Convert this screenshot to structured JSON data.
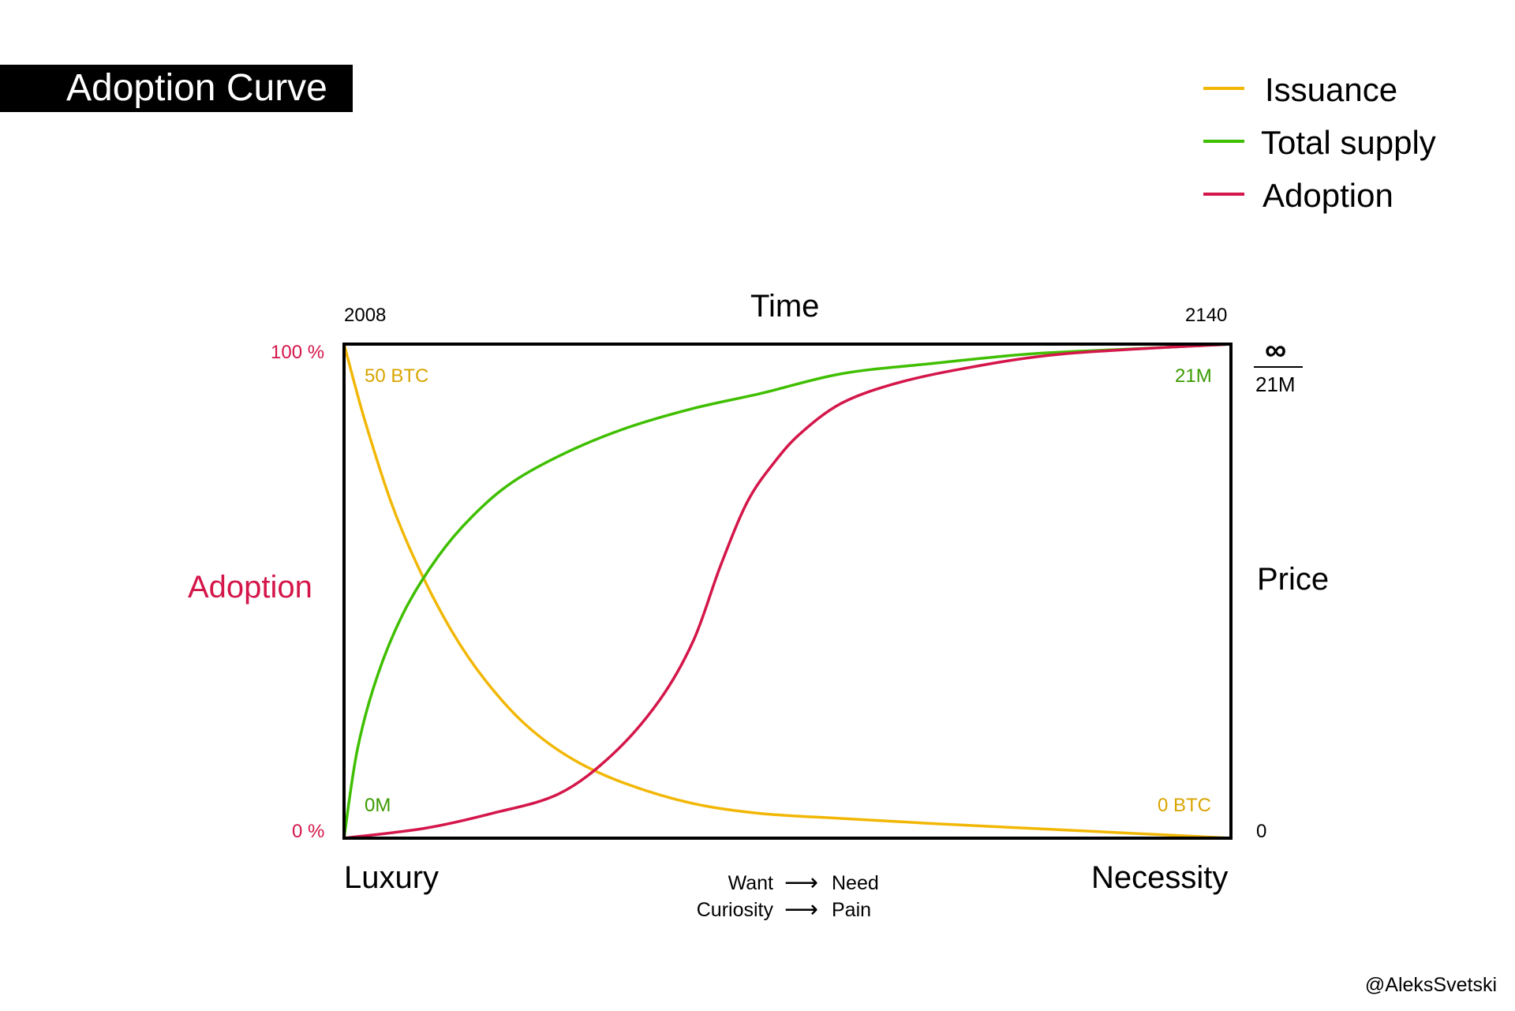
{
  "header": {
    "title": "Adoption Curve"
  },
  "legend": [
    {
      "name": "Issuance",
      "color": "#f2b705"
    },
    {
      "name": "Total supply",
      "color": "#3fbf00"
    },
    {
      "name": "Adoption",
      "color": "#d4164a"
    }
  ],
  "axes": {
    "top_title": "Time",
    "x_start": "2008",
    "x_end": "2140",
    "left_title": "Adoption",
    "left_top": "100 %",
    "left_bottom": "0 %",
    "right_title": "Price",
    "right_top_symbol": "∞",
    "right_top_value": "21M",
    "right_bottom": "0",
    "bottom_left": "Luxury",
    "bottom_right": "Necessity"
  },
  "annotations": {
    "issuance_start": "50 BTC",
    "issuance_end": "0 BTC",
    "supply_start": "0M",
    "supply_end": "21M"
  },
  "flow": [
    {
      "from": "Want",
      "arrow": "⟶",
      "to": "Need"
    },
    {
      "from": "Curiosity",
      "arrow": "⟶",
      "to": "Pain"
    }
  ],
  "credit": "@AleksSvetski",
  "chart_data": {
    "type": "line",
    "title": "Adoption Curve",
    "xlabel": "Time",
    "ylabel": "Adoption",
    "xlim": [
      2008,
      2140
    ],
    "ylim": [
      0,
      100
    ],
    "grid": false,
    "legend_position": "top-right",
    "series": [
      {
        "name": "Issuance",
        "color": "#f2b705",
        "x": [
          2008,
          2011,
          2015,
          2019,
          2024,
          2029,
          2035,
          2042,
          2050,
          2060,
          2070,
          2082,
          2095,
          2110,
          2125,
          2140
        ],
        "y": [
          100,
          85,
          68,
          55,
          42,
          32,
          23,
          16,
          11,
          7,
          5,
          4,
          3,
          2,
          1,
          0
        ]
      },
      {
        "name": "Total supply",
        "color": "#3fbf00",
        "x": [
          2008,
          2010,
          2013,
          2017,
          2022,
          2027,
          2033,
          2041,
          2050,
          2060,
          2070,
          2082,
          2095,
          2110,
          2125,
          2140
        ],
        "y": [
          0,
          18,
          33,
          46,
          57,
          65,
          72,
          78,
          83,
          87,
          90,
          94,
          96,
          98,
          99,
          100
        ]
      },
      {
        "name": "Adoption",
        "color": "#d4164a",
        "x": [
          2008,
          2020,
          2030,
          2040,
          2048,
          2055,
          2060,
          2064,
          2068,
          2072,
          2076,
          2082,
          2090,
          2100,
          2115,
          2140
        ],
        "y": [
          0,
          2,
          5,
          9,
          17,
          28,
          40,
          55,
          68,
          76,
          82,
          88,
          92,
          95,
          98,
          100
        ]
      }
    ]
  }
}
